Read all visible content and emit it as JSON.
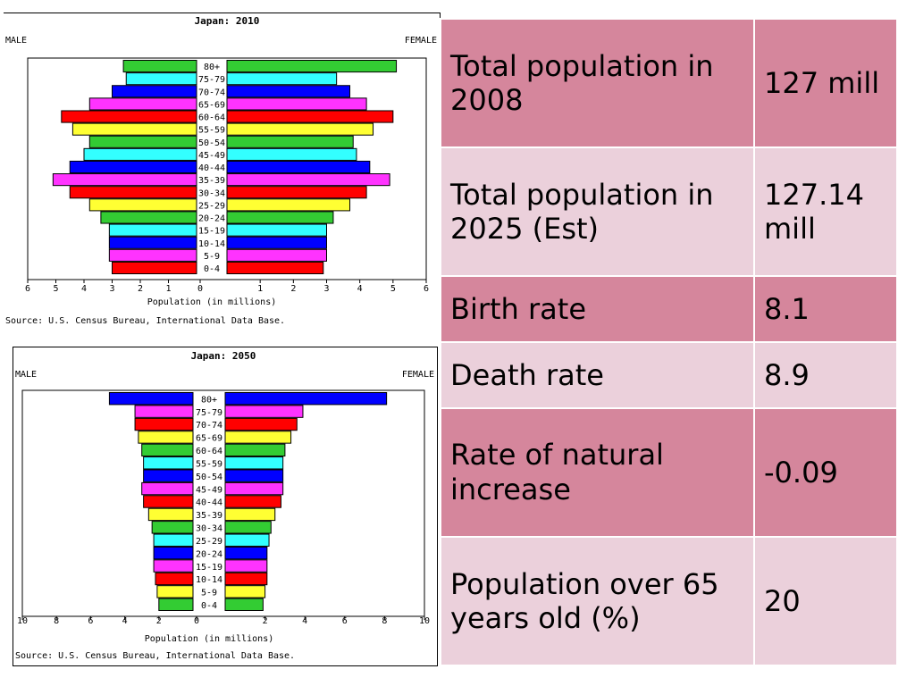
{
  "pyramids": [
    {
      "id": "pyr2010",
      "chart_data": {
        "type": "bar",
        "orientation": "horizontal-pyramid",
        "title": "Japan: 2010",
        "left_label": "MALE",
        "right_label": "FEMALE",
        "xlabel": "Population (in millions)",
        "source": "Source: U.S. Census Bureau, International Data Base.",
        "xlim": [
          0,
          6
        ],
        "ticks": [
          6,
          5,
          4,
          3,
          2,
          1,
          0,
          1,
          2,
          3,
          4,
          5,
          6
        ],
        "categories": [
          "80+",
          "75-79",
          "70-74",
          "65-69",
          "60-64",
          "55-59",
          "50-54",
          "45-49",
          "40-44",
          "35-39",
          "30-34",
          "25-29",
          "20-24",
          "15-19",
          "10-14",
          "5-9",
          "0-4"
        ],
        "series": [
          {
            "name": "MALE",
            "values": [
              2.6,
              2.5,
              3.0,
              3.8,
              4.8,
              4.4,
              3.8,
              4.0,
              4.5,
              5.1,
              4.5,
              3.8,
              3.4,
              3.1,
              3.1,
              3.1,
              3.0
            ]
          },
          {
            "name": "FEMALE",
            "values": [
              5.1,
              3.3,
              3.7,
              4.2,
              5.0,
              4.4,
              3.8,
              3.9,
              4.3,
              4.9,
              4.2,
              3.7,
              3.2,
              3.0,
              3.0,
              3.0,
              2.9
            ]
          }
        ],
        "colors": [
          "#33cc33",
          "#33ffff",
          "#0000ff",
          "#ff33ff",
          "#ff0000",
          "#ffff33",
          "#33cc33",
          "#33ffff",
          "#0000ff",
          "#ff33ff",
          "#ff0000",
          "#ffff33",
          "#33cc33",
          "#33ffff",
          "#0000ff",
          "#ff33ff",
          "#ff0000"
        ]
      }
    },
    {
      "id": "pyr2050",
      "chart_data": {
        "type": "bar",
        "orientation": "horizontal-pyramid",
        "title": "Japan: 2050",
        "left_label": "MALE",
        "right_label": "FEMALE",
        "xlabel": "Population (in millions)",
        "source": "Source: U.S. Census Bureau, International Data Base.",
        "xlim": [
          0,
          10
        ],
        "ticks": [
          10,
          8,
          6,
          4,
          2,
          0,
          2,
          4,
          6,
          8,
          10
        ],
        "categories": [
          "80+",
          "75-79",
          "70-74",
          "65-69",
          "60-64",
          "55-59",
          "50-54",
          "45-49",
          "40-44",
          "35-39",
          "30-34",
          "25-29",
          "20-24",
          "15-19",
          "10-14",
          "5-9",
          "0-4"
        ],
        "series": [
          {
            "name": "MALE",
            "values": [
              4.9,
              3.4,
              3.4,
              3.2,
              3.0,
              2.9,
              2.9,
              3.0,
              2.9,
              2.6,
              2.4,
              2.3,
              2.3,
              2.3,
              2.2,
              2.1,
              2.0
            ]
          },
          {
            "name": "FEMALE",
            "values": [
              8.1,
              3.9,
              3.6,
              3.3,
              3.0,
              2.9,
              2.9,
              2.9,
              2.8,
              2.5,
              2.3,
              2.2,
              2.1,
              2.1,
              2.1,
              2.0,
              1.9
            ]
          }
        ],
        "colors": [
          "#0000ff",
          "#ff33ff",
          "#ff0000",
          "#ffff33",
          "#33cc33",
          "#33ffff",
          "#0000ff",
          "#ff33ff",
          "#ff0000",
          "#ffff33",
          "#33cc33",
          "#33ffff",
          "#0000ff",
          "#ff33ff",
          "#ff0000",
          "#ffff33",
          "#33cc33"
        ]
      }
    }
  ],
  "facts": [
    {
      "label": "Total population in 2008",
      "value": "127 mill"
    },
    {
      "label": "Total population in 2025 (Est)",
      "value": "127.14 mill"
    },
    {
      "label": "Birth rate",
      "value": "8.1"
    },
    {
      "label": "Death rate",
      "value": "8.9"
    },
    {
      "label": "Rate of natural increase",
      "value": "-0.09"
    },
    {
      "label": "Population over 65 years old (%)",
      "value": "20"
    }
  ],
  "theme": {
    "row_dark": "#d5869c",
    "row_light": "#ebd0db",
    "bar_outline": "#000000"
  }
}
